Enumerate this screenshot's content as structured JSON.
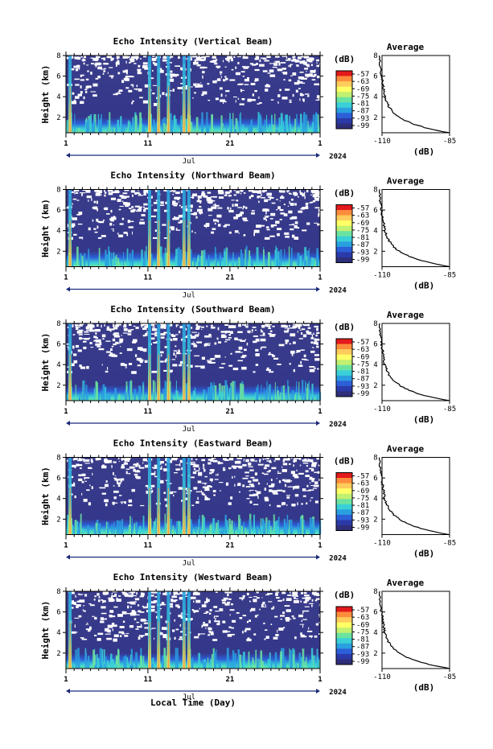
{
  "chart_data": {
    "type": "heatmap",
    "panels": [
      {
        "title": "Echo Intensity (Vertical Beam)",
        "avg_title": "Average"
      },
      {
        "title": "Echo Intensity (Northward Beam)",
        "avg_title": "Average"
      },
      {
        "title": "Echo Intensity (Southward Beam)",
        "avg_title": "Average"
      },
      {
        "title": "Echo Intensity (Eastward Beam)",
        "avg_title": "Average"
      },
      {
        "title": "Echo Intensity (Westward Beam)",
        "avg_title": "Average"
      }
    ],
    "ylabel": "Height (km)",
    "yticks": [
      "2",
      "4",
      "6",
      "8"
    ],
    "ylim": [
      0.5,
      8
    ],
    "xlabel": "Local Time (Day)",
    "xticks": [
      "1",
      "11",
      "21",
      "1"
    ],
    "xlim": [
      1,
      32
    ],
    "month_label": "Jul",
    "year_label": "2024",
    "colorbar": {
      "unit": "(dB)",
      "ticks": [
        "-57",
        "-63",
        "-69",
        "-75",
        "-81",
        "-87",
        "-93",
        "-99"
      ],
      "colors": [
        "#e31a1c",
        "#fd8d3c",
        "#fecc5c",
        "#ffff66",
        "#c2f070",
        "#6be3a0",
        "#3ad0d8",
        "#2a9fe0",
        "#2c5fd8",
        "#2b3aa8",
        "#2e2e7a"
      ]
    },
    "avg_xlabel": "(dB)",
    "avg_xticks": [
      "-110",
      "-85"
    ],
    "avg_xlim": [
      -110,
      -85
    ],
    "avg_yticks": [
      "2",
      "4",
      "6",
      "8"
    ],
    "bright_days": [
      1.5,
      11.2,
      12.3,
      13.5,
      15.4,
      16.0
    ]
  }
}
